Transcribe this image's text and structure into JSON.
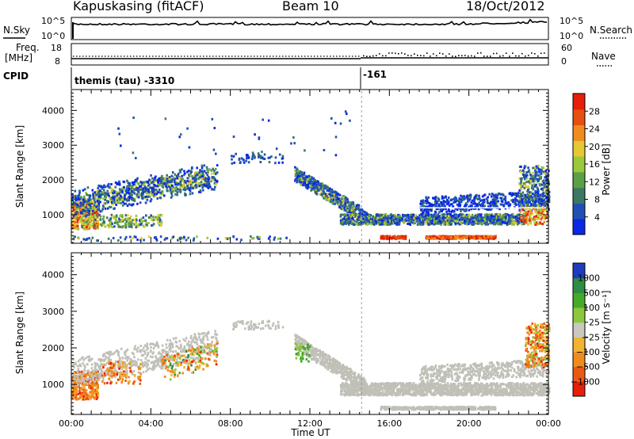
{
  "header": {
    "station": "Kapuskasing (fitACF)",
    "beam": "Beam 10",
    "date": "18/Oct/2012"
  },
  "noise_panel": {
    "left_label": "N.Sky",
    "right_label": "N.Search",
    "left_ticks": [
      "10^5",
      "10^0"
    ],
    "right_ticks": [
      "10^5",
      "10^0"
    ]
  },
  "freq_panel": {
    "left_label_1": "Freq.",
    "left_label_2": "[MHz]",
    "right_label": "Nave",
    "left_ticks": [
      "18",
      "8"
    ],
    "right_ticks": [
      "60",
      "0"
    ]
  },
  "cpid": {
    "label": "CPID",
    "segments": [
      {
        "text": "themis (tau) -3310",
        "start_hour": 0
      },
      {
        "text": "-161",
        "start_hour": 14.6
      }
    ]
  },
  "chart_data": [
    {
      "type": "heatmap",
      "parameter": "power",
      "ylabel": "Slant Range [km]",
      "xlabel": "Time UT",
      "x_range_hours": [
        0,
        24
      ],
      "ylim": [
        180,
        4600
      ],
      "yticks": [
        1000,
        2000,
        3000,
        4000
      ],
      "xticklabels": [
        "00:00",
        "04:00",
        "08:00",
        "12:00",
        "16:00",
        "20:00",
        "00:00"
      ],
      "colorbar": {
        "label": "Power [dB]",
        "ticks": [
          "4",
          "8",
          "12",
          "16",
          "20",
          "24",
          "28"
        ],
        "colors": [
          "#0a28e6",
          "#2050b4",
          "#3c7864",
          "#5aa046",
          "#9bc83c",
          "#e6c832",
          "#f08c1e",
          "#e65010",
          "#e61e0a"
        ]
      }
    },
    {
      "type": "heatmap",
      "parameter": "velocity",
      "ylabel": "Slant Range [km]",
      "xlabel": "Time UT",
      "x_range_hours": [
        0,
        24
      ],
      "ylim": [
        180,
        4600
      ],
      "yticks": [
        1000,
        2000,
        3000,
        4000
      ],
      "xticklabels": [
        "00:00",
        "04:00",
        "08:00",
        "12:00",
        "16:00",
        "20:00",
        "00:00"
      ],
      "colorbar": {
        "label": "Velocity [m s⁻¹]",
        "ticks": [
          "1000",
          "500",
          "100",
          "25",
          "−25",
          "−100",
          "−500",
          "−1000"
        ],
        "colors": [
          "#1e3cbe",
          "#2d8c46",
          "#46aa28",
          "#8cc83c",
          "#c8c8c0",
          "#f0b432",
          "#f08c1e",
          "#eb5a14",
          "#e61e0a"
        ],
        "ground_scatter": "#c0c0b8"
      }
    }
  ]
}
